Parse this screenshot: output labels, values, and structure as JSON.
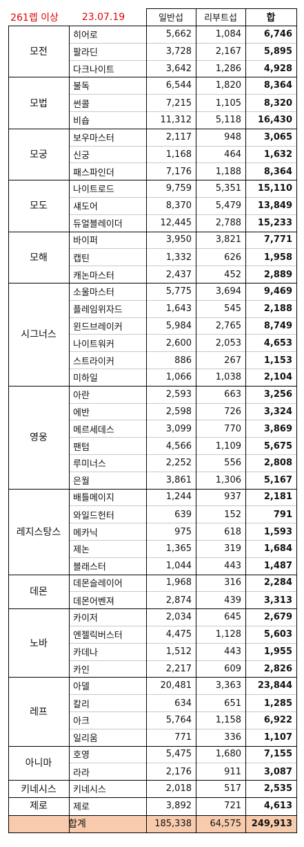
{
  "header": {
    "title_label": "261렙 이상",
    "date": "23.07.19",
    "col_normal": "일반섭",
    "col_reboot": "리부트섭",
    "col_sum": "합"
  },
  "groups": [
    {
      "name": "모전",
      "rows": [
        {
          "job": "히어로",
          "normal": "5,662",
          "reboot": "1,084",
          "sum": "6,746"
        },
        {
          "job": "팔라딘",
          "normal": "3,728",
          "reboot": "2,167",
          "sum": "5,895"
        },
        {
          "job": "다크나이트",
          "normal": "3,642",
          "reboot": "1,286",
          "sum": "4,928"
        }
      ]
    },
    {
      "name": "모법",
      "rows": [
        {
          "job": "불독",
          "normal": "6,544",
          "reboot": "1,820",
          "sum": "8,364"
        },
        {
          "job": "썬콜",
          "normal": "7,215",
          "reboot": "1,105",
          "sum": "8,320"
        },
        {
          "job": "비숍",
          "normal": "11,312",
          "reboot": "5,118",
          "sum": "16,430"
        }
      ]
    },
    {
      "name": "모궁",
      "rows": [
        {
          "job": "보우마스터",
          "normal": "2,117",
          "reboot": "948",
          "sum": "3,065"
        },
        {
          "job": "신궁",
          "normal": "1,168",
          "reboot": "464",
          "sum": "1,632"
        },
        {
          "job": "패스파인더",
          "normal": "7,176",
          "reboot": "1,188",
          "sum": "8,364"
        }
      ]
    },
    {
      "name": "모도",
      "rows": [
        {
          "job": "나이트로드",
          "normal": "9,759",
          "reboot": "5,351",
          "sum": "15,110"
        },
        {
          "job": "섀도어",
          "normal": "8,370",
          "reboot": "5,479",
          "sum": "13,849"
        },
        {
          "job": "듀얼블레이더",
          "normal": "12,445",
          "reboot": "2,788",
          "sum": "15,233"
        }
      ]
    },
    {
      "name": "모해",
      "rows": [
        {
          "job": "바이퍼",
          "normal": "3,950",
          "reboot": "3,821",
          "sum": "7,771"
        },
        {
          "job": "캡틴",
          "normal": "1,332",
          "reboot": "626",
          "sum": "1,958"
        },
        {
          "job": "캐논마스터",
          "normal": "2,437",
          "reboot": "452",
          "sum": "2,889"
        }
      ]
    },
    {
      "name": "시그너스",
      "rows": [
        {
          "job": "소울마스터",
          "normal": "5,775",
          "reboot": "3,694",
          "sum": "9,469"
        },
        {
          "job": "플레임위자드",
          "normal": "1,643",
          "reboot": "545",
          "sum": "2,188"
        },
        {
          "job": "윈드브레이커",
          "normal": "5,984",
          "reboot": "2,765",
          "sum": "8,749"
        },
        {
          "job": "나이트워커",
          "normal": "2,600",
          "reboot": "2,053",
          "sum": "4,653"
        },
        {
          "job": "스트라이커",
          "normal": "886",
          "reboot": "267",
          "sum": "1,153"
        },
        {
          "job": "미하일",
          "normal": "1,066",
          "reboot": "1,038",
          "sum": "2,104"
        }
      ]
    },
    {
      "name": "영웅",
      "rows": [
        {
          "job": "아란",
          "normal": "2,593",
          "reboot": "663",
          "sum": "3,256"
        },
        {
          "job": "에반",
          "normal": "2,598",
          "reboot": "726",
          "sum": "3,324"
        },
        {
          "job": "메르세데스",
          "normal": "3,099",
          "reboot": "770",
          "sum": "3,869"
        },
        {
          "job": "팬텀",
          "normal": "4,566",
          "reboot": "1,109",
          "sum": "5,675"
        },
        {
          "job": "루미너스",
          "normal": "2,252",
          "reboot": "556",
          "sum": "2,808"
        },
        {
          "job": "은월",
          "normal": "3,861",
          "reboot": "1,306",
          "sum": "5,167"
        }
      ]
    },
    {
      "name": "레지스탕스",
      "rows": [
        {
          "job": "배틀메이지",
          "normal": "1,244",
          "reboot": "937",
          "sum": "2,181"
        },
        {
          "job": "와일드헌터",
          "normal": "639",
          "reboot": "152",
          "sum": "791"
        },
        {
          "job": "메카닉",
          "normal": "975",
          "reboot": "618",
          "sum": "1,593"
        },
        {
          "job": "제논",
          "normal": "1,365",
          "reboot": "319",
          "sum": "1,684"
        },
        {
          "job": "블래스터",
          "normal": "1,044",
          "reboot": "443",
          "sum": "1,487"
        }
      ]
    },
    {
      "name": "데몬",
      "rows": [
        {
          "job": "데몬슬레이어",
          "normal": "1,968",
          "reboot": "316",
          "sum": "2,284"
        },
        {
          "job": "데몬어벤져",
          "normal": "2,874",
          "reboot": "439",
          "sum": "3,313"
        }
      ]
    },
    {
      "name": "노바",
      "rows": [
        {
          "job": "카이저",
          "normal": "2,034",
          "reboot": "645",
          "sum": "2,679"
        },
        {
          "job": "엔젤릭버스터",
          "normal": "4,475",
          "reboot": "1,128",
          "sum": "5,603"
        },
        {
          "job": "카데나",
          "normal": "1,512",
          "reboot": "443",
          "sum": "1,955"
        },
        {
          "job": "카인",
          "normal": "2,217",
          "reboot": "609",
          "sum": "2,826"
        }
      ]
    },
    {
      "name": "레프",
      "rows": [
        {
          "job": "아델",
          "normal": "20,481",
          "reboot": "3,363",
          "sum": "23,844"
        },
        {
          "job": "칼리",
          "normal": "634",
          "reboot": "651",
          "sum": "1,285"
        },
        {
          "job": "아크",
          "normal": "5,764",
          "reboot": "1,158",
          "sum": "6,922"
        },
        {
          "job": "일리움",
          "normal": "771",
          "reboot": "336",
          "sum": "1,107"
        }
      ]
    },
    {
      "name": "아니마",
      "rows": [
        {
          "job": "호영",
          "normal": "5,475",
          "reboot": "1,680",
          "sum": "7,155"
        },
        {
          "job": "라라",
          "normal": "2,176",
          "reboot": "911",
          "sum": "3,087"
        }
      ]
    },
    {
      "name": "키네시스",
      "rows": [
        {
          "job": "키네시스",
          "normal": "2,018",
          "reboot": "517",
          "sum": "2,535"
        }
      ]
    },
    {
      "name": "제로",
      "rows": [
        {
          "job": "제로",
          "normal": "3,892",
          "reboot": "721",
          "sum": "4,613"
        }
      ]
    }
  ],
  "total": {
    "label": "합계",
    "normal": "185,338",
    "reboot": "64,575",
    "sum": "249,913"
  },
  "colors": {
    "title_red": "#e00000",
    "total_fill": "#f8cbad",
    "border": "#000000",
    "gridline": "#c8c8c8"
  }
}
